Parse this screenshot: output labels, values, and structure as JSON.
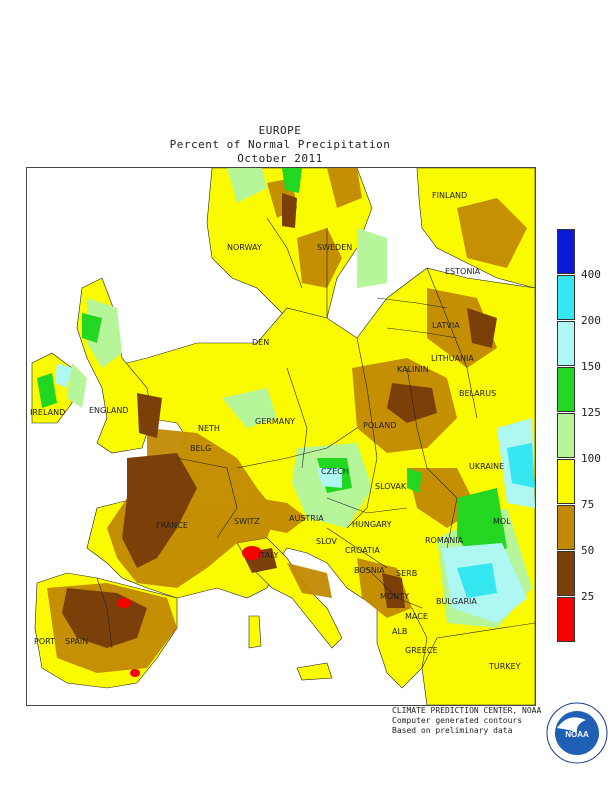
{
  "title": {
    "region": "EUROPE",
    "metric": "Percent of Normal Precipitation",
    "period": "October 2011"
  },
  "legend": {
    "thresholds": [
      "400",
      "200",
      "150",
      "125",
      "100",
      "75",
      "50",
      "25"
    ],
    "colors": [
      "#0b1ad6",
      "#36e6f0",
      "#aef7f2",
      "#22d622",
      "#b6f59a",
      "#fbfb00",
      "#c28a04",
      "#7b4009",
      "#f70000"
    ]
  },
  "countries": {
    "finland": "FINLAND",
    "norway": "NORWAY",
    "sweden": "SWEDEN",
    "estonia": "ESTONIA",
    "latvia": "LATVIA",
    "lithuania": "LITHUANIA",
    "kalinin": "KALININ",
    "belarus": "BELARUS",
    "ireland": "IRELAND",
    "england": "ENGLAND",
    "den": "DEN",
    "neth": "NETH",
    "belg": "BELG",
    "germany": "GERMANY",
    "poland": "POLAND",
    "czech": "CZECH",
    "slovak": "SLOVAK",
    "ukraine": "UKRAINE",
    "france": "FRANCE",
    "switz": "SWITZ",
    "austria": "AUSTRIA",
    "hungary": "HUNGARY",
    "mol": "MOL",
    "slov": "SLOV",
    "croatia": "CROATIA",
    "romania": "ROMANIA",
    "bosnia": "BOSNIA",
    "serb": "SERB",
    "italy": "ITALY",
    "monty": "MONTY",
    "bulgaria": "BULGARIA",
    "mace": "MACE",
    "alb": "ALB",
    "port": "PORT",
    "spain": "SPAIN",
    "greece": "GREECE",
    "turkey": "TURKEY"
  },
  "credits": {
    "line1": "CLIMATE PREDICTION CENTER, NOAA",
    "line2": "Computer generated contours",
    "line3": "Based on preliminary data"
  },
  "logo": {
    "text": "NOAA",
    "ring_text": "NATIONAL OCEANIC AND ATMOSPHERIC ADMINISTRATION · U.S. DEPARTMENT OF COMMERCE"
  }
}
